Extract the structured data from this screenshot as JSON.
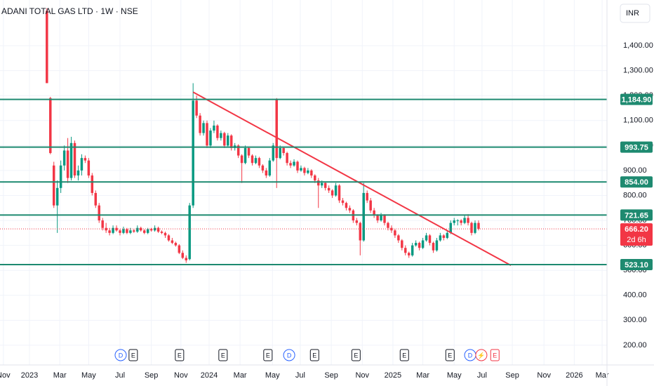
{
  "chart_data": {
    "type": "candlestick",
    "title": "ADANI TOTAL GAS LTD · 1W · NSE",
    "currency": "INR",
    "up_color": "#089981",
    "down_color": "#f23645",
    "grid": true,
    "xlim": [
      -8.47,
      165.9
    ],
    "ylim": [
      121,
      1583
    ],
    "xticks": [
      {
        "value": -7.5,
        "label": "Nov"
      },
      {
        "value": 0,
        "label": "2023"
      },
      {
        "value": 8.7,
        "label": "Mar"
      },
      {
        "value": 17,
        "label": "May"
      },
      {
        "value": 26,
        "label": "Jul"
      },
      {
        "value": 35,
        "label": "Sep"
      },
      {
        "value": 43.5,
        "label": "Nov"
      },
      {
        "value": 51.6,
        "label": "2024"
      },
      {
        "value": 60.5,
        "label": "Mar"
      },
      {
        "value": 69.8,
        "label": "May"
      },
      {
        "value": 77.8,
        "label": "Jul"
      },
      {
        "value": 86.7,
        "label": "Sep"
      },
      {
        "value": 95.6,
        "label": "Nov"
      },
      {
        "value": 104.4,
        "label": "2025"
      },
      {
        "value": 113,
        "label": "Mar"
      },
      {
        "value": 122,
        "label": "May"
      },
      {
        "value": 130,
        "label": "Jul"
      },
      {
        "value": 138.7,
        "label": "Sep"
      },
      {
        "value": 147.8,
        "label": "Nov"
      },
      {
        "value": 156.5,
        "label": "2026"
      },
      {
        "value": 164.5,
        "label": "Mar"
      }
    ],
    "yticks": [
      {
        "value": 200,
        "label": "200.00"
      },
      {
        "value": 300,
        "label": "300.00"
      },
      {
        "value": 400,
        "label": "400.00"
      },
      {
        "value": 500,
        "label": "500.00"
      },
      {
        "value": 600,
        "label": "600.00"
      },
      {
        "value": 700,
        "label": "700.00"
      },
      {
        "value": 800,
        "label": "800.00"
      },
      {
        "value": 900,
        "label": "900.00"
      },
      {
        "value": 1000,
        "label": "1,000.00"
      },
      {
        "value": 1100,
        "label": "1,100.00"
      },
      {
        "value": 1200,
        "label": "1,200.00"
      },
      {
        "value": 1300,
        "label": "1,300.00"
      },
      {
        "value": 1400,
        "label": "1,400.00"
      }
    ],
    "x": [
      5,
      6,
      7,
      8,
      9,
      10,
      11,
      12,
      13,
      14,
      15,
      16,
      17,
      18,
      19,
      20,
      21,
      22,
      23,
      24,
      25,
      26,
      27,
      28,
      29,
      30,
      31,
      32,
      33,
      34,
      35,
      36,
      37,
      38,
      39,
      40,
      41,
      42,
      43,
      44,
      45,
      46,
      47,
      48,
      49,
      50,
      51,
      52,
      53,
      54,
      55,
      56,
      57,
      58,
      59,
      60,
      61,
      62,
      63,
      64,
      65,
      66,
      67,
      68,
      69,
      70,
      71,
      72,
      73,
      74,
      75,
      76,
      77,
      78,
      79,
      80,
      81,
      82,
      83,
      84,
      85,
      86,
      87,
      88,
      89,
      90,
      91,
      92,
      93,
      94,
      95,
      96,
      97,
      98,
      99,
      100,
      101,
      102,
      103,
      104,
      105,
      106,
      107,
      108,
      109,
      110,
      111,
      112,
      113,
      114,
      115,
      116,
      117,
      118,
      119,
      120,
      121,
      122,
      123,
      124,
      125,
      126,
      127,
      128,
      129
    ],
    "open": [
      1540,
      1190,
      920,
      760,
      830,
      920,
      980,
      870,
      1010,
      880,
      900,
      950,
      940,
      880,
      810,
      760,
      700,
      670,
      660,
      650,
      670,
      660,
      650,
      665,
      650,
      660,
      655,
      670,
      660,
      650,
      665,
      660,
      670,
      655,
      650,
      640,
      620,
      610,
      600,
      570,
      550,
      545,
      760,
      1180,
      1120,
      1050,
      1090,
      1000,
      1060,
      1080,
      1030,
      1050,
      1000,
      1040,
      990,
      1000,
      960,
      930,
      990,
      960,
      930,
      950,
      920,
      900,
      880,
      940,
      1185,
      950,
      990,
      970,
      930,
      920,
      935,
      900,
      910,
      890,
      900,
      880,
      860,
      840,
      850,
      830,
      820,
      800,
      840,
      780,
      770,
      750,
      740,
      700,
      690,
      620,
      810,
      780,
      740,
      720,
      700,
      720,
      690,
      670,
      660,
      640,
      620,
      590,
      570,
      560,
      600,
      610,
      590,
      620,
      640,
      610,
      580,
      620,
      640,
      630,
      650,
      690,
      700,
      700,
      690,
      710,
      690,
      650,
      690
    ],
    "high": [
      1550,
      1195,
      935,
      860,
      940,
      1000,
      1030,
      1035,
      1020,
      920,
      965,
      960,
      950,
      890,
      820,
      770,
      710,
      690,
      670,
      680,
      680,
      665,
      675,
      670,
      670,
      665,
      680,
      675,
      665,
      670,
      670,
      680,
      675,
      660,
      655,
      645,
      630,
      615,
      605,
      580,
      560,
      770,
      1250,
      1200,
      1130,
      1100,
      1100,
      1070,
      1100,
      1085,
      1060,
      1055,
      1050,
      1045,
      1010,
      1005,
      965,
      1000,
      995,
      965,
      960,
      955,
      925,
      910,
      950,
      1010,
      1190,
      1000,
      995,
      975,
      940,
      945,
      940,
      920,
      915,
      910,
      905,
      885,
      870,
      860,
      855,
      840,
      825,
      850,
      845,
      790,
      775,
      760,
      745,
      710,
      695,
      850,
      820,
      790,
      750,
      725,
      730,
      725,
      695,
      680,
      665,
      645,
      625,
      600,
      575,
      610,
      620,
      615,
      630,
      650,
      645,
      615,
      630,
      650,
      645,
      660,
      700,
      710,
      705,
      705,
      720,
      725,
      695,
      700,
      700
    ],
    "low": [
      1250,
      965,
      750,
      650,
      810,
      900,
      850,
      860,
      870,
      860,
      880,
      930,
      870,
      800,
      750,
      690,
      660,
      650,
      640,
      645,
      655,
      640,
      645,
      645,
      645,
      650,
      650,
      655,
      645,
      645,
      655,
      655,
      650,
      645,
      630,
      615,
      605,
      595,
      565,
      545,
      530,
      540,
      750,
      1110,
      1040,
      1040,
      990,
      990,
      1050,
      1020,
      1020,
      990,
      995,
      980,
      980,
      950,
      850,
      925,
      950,
      920,
      925,
      910,
      890,
      870,
      875,
      935,
      830,
      945,
      960,
      920,
      910,
      915,
      890,
      895,
      880,
      885,
      870,
      850,
      750,
      830,
      820,
      810,
      790,
      795,
      770,
      760,
      740,
      730,
      690,
      680,
      560,
      615,
      770,
      730,
      710,
      690,
      695,
      680,
      660,
      650,
      630,
      610,
      580,
      560,
      550,
      555,
      595,
      580,
      585,
      615,
      600,
      570,
      575,
      615,
      620,
      625,
      645,
      680,
      680,
      680,
      685,
      680,
      640,
      645,
      660
    ],
    "close": [
      1250,
      970,
      760,
      830,
      920,
      980,
      870,
      1010,
      880,
      900,
      950,
      940,
      880,
      810,
      760,
      700,
      670,
      660,
      650,
      670,
      660,
      650,
      665,
      650,
      660,
      655,
      670,
      660,
      650,
      665,
      660,
      670,
      655,
      650,
      640,
      620,
      610,
      600,
      570,
      550,
      540,
      760,
      1180,
      1120,
      1050,
      1090,
      1000,
      1060,
      1080,
      1030,
      1050,
      1000,
      1040,
      990,
      1000,
      960,
      930,
      990,
      960,
      930,
      950,
      920,
      900,
      880,
      940,
      1000,
      950,
      990,
      970,
      930,
      920,
      935,
      900,
      910,
      890,
      900,
      880,
      860,
      840,
      850,
      830,
      820,
      800,
      840,
      780,
      770,
      750,
      740,
      700,
      690,
      620,
      810,
      780,
      740,
      720,
      700,
      720,
      690,
      670,
      660,
      640,
      620,
      590,
      570,
      560,
      600,
      610,
      590,
      620,
      640,
      610,
      580,
      620,
      640,
      630,
      650,
      690,
      700,
      700,
      690,
      710,
      690,
      650,
      690,
      666.2
    ],
    "levels": [
      {
        "value": 1184.9,
        "label": "1,184.90"
      },
      {
        "value": 993.75,
        "label": "993.75"
      },
      {
        "value": 854,
        "label": "854.00"
      },
      {
        "value": 721.65,
        "label": "721.65"
      },
      {
        "value": 523.1,
        "label": "523.10"
      }
    ],
    "level_color": "#1e8a70",
    "trendline": {
      "x": [
        47,
        138.3
      ],
      "y": [
        1214,
        520
      ],
      "color": "#f23645"
    },
    "last_price": {
      "value": 666.2,
      "label": "666.20",
      "countdown": "2d 6h"
    },
    "events": [
      {
        "label": "D",
        "x": 26.2
      },
      {
        "label": "E",
        "x": 29.8
      },
      {
        "label": "E",
        "x": 43.1
      },
      {
        "label": "E",
        "x": 55.6
      },
      {
        "label": "E",
        "x": 68.5
      },
      {
        "label": "D",
        "x": 74.6
      },
      {
        "label": "E",
        "x": 81.9
      },
      {
        "label": "E",
        "x": 93.8
      },
      {
        "label": "E",
        "x": 107.7
      },
      {
        "label": "E",
        "x": 120.8
      },
      {
        "label": "D",
        "x": 126.6
      },
      {
        "label": "⚡",
        "x": 129.8
      },
      {
        "label": "E",
        "x": 133.7
      }
    ]
  }
}
